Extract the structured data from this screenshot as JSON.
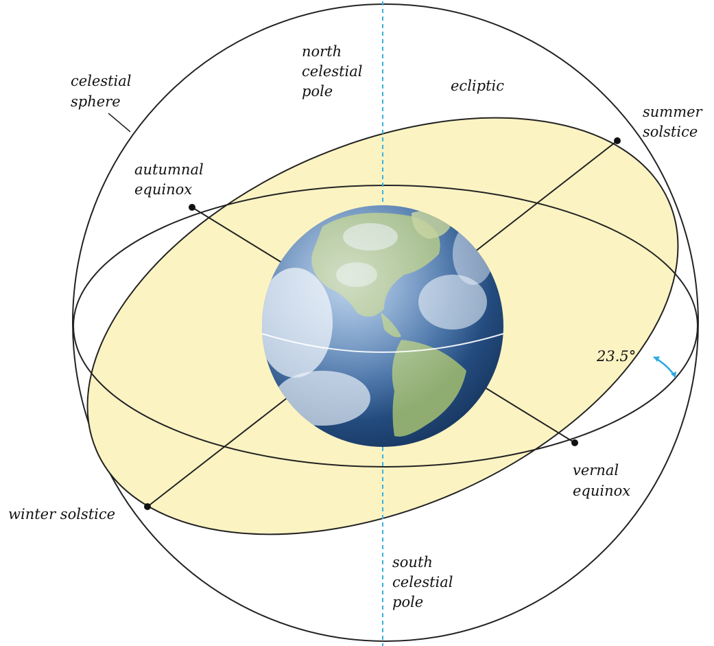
{
  "labels": {
    "celestial_sphere": [
      "celestial",
      "sphere"
    ],
    "north_celestial_pole": [
      "north",
      "celestial",
      "pole"
    ],
    "ecliptic": [
      "ecliptic"
    ],
    "summer_solstice": [
      "summer",
      "solstice"
    ],
    "autumnal_equinox": [
      "autumnal",
      "equinox"
    ],
    "tilt_angle": [
      "23.5°"
    ],
    "vernal_equinox": [
      "vernal",
      "equinox"
    ],
    "winter_solstice": [
      "winter solstice"
    ],
    "south_celestial_pole": [
      "south",
      "celestial",
      "pole"
    ]
  },
  "colors": {
    "ecliptic_fill": "#fbf3c2",
    "outline": "#222222",
    "axis": "#3ab0e0",
    "tilt_arrow": "#2aa8e0",
    "ocean": "#2f5f9a",
    "land": "#9cb870",
    "cloud": "#e6eef7"
  }
}
